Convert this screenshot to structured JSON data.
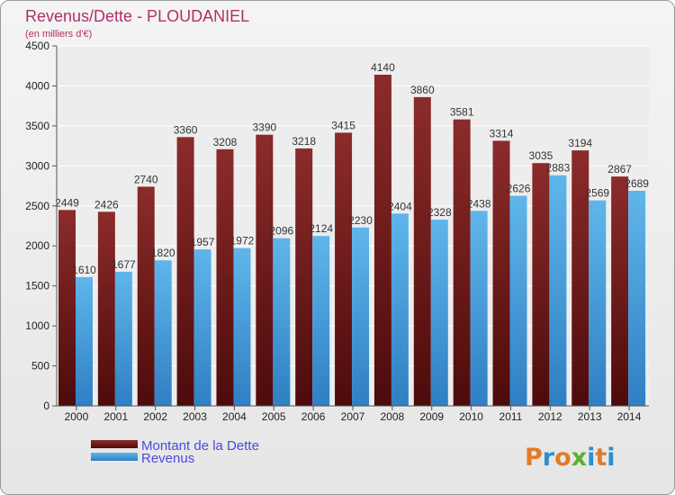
{
  "chart_data": {
    "type": "bar",
    "title": "Revenus/Dette - PLOUDANIEL",
    "subtitle": "(en milliers d'€)",
    "categories": [
      "2000",
      "2001",
      "2002",
      "2003",
      "2004",
      "2005",
      "2006",
      "2007",
      "2008",
      "2009",
      "2010",
      "2011",
      "2012",
      "2013",
      "2014"
    ],
    "series": [
      {
        "name": "Montant de la Dette",
        "color": "#7a1c1c",
        "values": [
          2449,
          2426,
          2740,
          3360,
          3208,
          3390,
          3218,
          3415,
          4140,
          3860,
          3581,
          3314,
          3035,
          3194,
          2867
        ]
      },
      {
        "name": "Revenus",
        "color": "#4aa3e0",
        "values": [
          1610,
          1677,
          1820,
          1957,
          1972,
          2096,
          2124,
          2230,
          2404,
          2328,
          2438,
          2626,
          2883,
          2569,
          2689
        ]
      }
    ],
    "ylim": [
      0,
      4500
    ],
    "yticks": [
      0,
      500,
      1000,
      1500,
      2000,
      2500,
      3000,
      3500,
      4000,
      4500
    ],
    "grid": true,
    "legend_position": "bottom-left"
  },
  "logo": {
    "text": "Proxiti",
    "letter_colors": [
      "#e07b2a",
      "#2a8fd0",
      "#e07b2a",
      "#5ab031",
      "#2a8fd0",
      "#e07b2a",
      "#2a8fd0"
    ]
  }
}
